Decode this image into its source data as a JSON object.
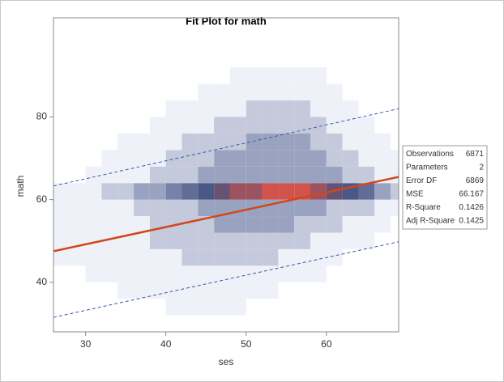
{
  "chart_data": {
    "type": "heatmap-fit",
    "title": "Fit Plot for math",
    "xlabel": "ses",
    "ylabel": "math",
    "xlim": [
      26,
      69
    ],
    "ylim": [
      28,
      104
    ],
    "xticks": [
      30,
      40,
      50,
      60
    ],
    "yticks": [
      40,
      60,
      80
    ],
    "xbins": [
      26,
      28,
      30,
      32,
      34,
      36,
      38,
      40,
      42,
      44,
      46,
      48,
      50,
      52,
      54,
      56,
      58,
      60,
      62,
      64,
      66,
      68,
      70
    ],
    "ybins": [
      32,
      36,
      40,
      44,
      48,
      52,
      56,
      60,
      64,
      68,
      72,
      76,
      80,
      84,
      88,
      92
    ],
    "counts": [
      [
        0,
        0,
        0,
        0,
        0,
        0,
        0,
        1,
        1,
        1,
        1,
        1,
        0,
        0,
        0,
        0,
        0,
        0,
        0,
        0,
        0,
        0
      ],
      [
        0,
        0,
        0,
        0,
        1,
        1,
        1,
        1,
        1,
        1,
        1,
        1,
        1,
        1,
        0,
        0,
        0,
        0,
        0,
        0,
        0,
        0
      ],
      [
        0,
        0,
        1,
        1,
        1,
        1,
        1,
        1,
        1,
        1,
        1,
        1,
        1,
        1,
        1,
        1,
        1,
        0,
        0,
        0,
        0,
        0
      ],
      [
        1,
        1,
        1,
        1,
        1,
        1,
        1,
        1,
        2,
        2,
        2,
        2,
        2,
        2,
        1,
        1,
        1,
        1,
        0,
        0,
        0,
        0
      ],
      [
        1,
        1,
        1,
        1,
        1,
        1,
        2,
        2,
        2,
        2,
        2,
        2,
        2,
        2,
        2,
        2,
        1,
        1,
        1,
        1,
        0,
        0
      ],
      [
        1,
        1,
        1,
        1,
        1,
        1,
        2,
        2,
        2,
        2,
        3,
        3,
        3,
        3,
        3,
        2,
        2,
        2,
        1,
        1,
        1,
        0
      ],
      [
        1,
        1,
        1,
        1,
        1,
        2,
        2,
        2,
        2,
        3,
        3,
        3,
        3,
        3,
        3,
        3,
        3,
        2,
        2,
        2,
        1,
        1
      ],
      [
        1,
        1,
        1,
        2,
        2,
        3,
        3,
        4,
        5,
        6,
        7,
        8,
        8,
        9,
        9,
        9,
        8,
        7,
        6,
        5,
        3,
        2
      ],
      [
        0,
        0,
        1,
        1,
        1,
        1,
        2,
        2,
        2,
        3,
        3,
        3,
        3,
        3,
        3,
        3,
        3,
        3,
        2,
        2,
        1,
        1
      ],
      [
        0,
        0,
        0,
        1,
        1,
        1,
        1,
        2,
        2,
        2,
        3,
        3,
        3,
        3,
        3,
        3,
        3,
        2,
        2,
        1,
        1,
        1
      ],
      [
        0,
        0,
        0,
        0,
        1,
        1,
        1,
        1,
        2,
        2,
        2,
        2,
        3,
        3,
        3,
        3,
        2,
        2,
        1,
        1,
        1,
        0
      ],
      [
        0,
        0,
        0,
        0,
        0,
        0,
        1,
        1,
        1,
        1,
        2,
        2,
        2,
        2,
        2,
        2,
        2,
        1,
        1,
        1,
        0,
        0
      ],
      [
        0,
        0,
        0,
        0,
        0,
        0,
        0,
        1,
        1,
        1,
        1,
        1,
        2,
        2,
        2,
        2,
        1,
        1,
        1,
        0,
        0,
        0
      ],
      [
        0,
        0,
        0,
        0,
        0,
        0,
        0,
        0,
        0,
        1,
        1,
        1,
        1,
        1,
        1,
        1,
        1,
        1,
        0,
        0,
        0,
        0
      ],
      [
        0,
        0,
        0,
        0,
        0,
        0,
        0,
        0,
        0,
        0,
        0,
        1,
        1,
        1,
        1,
        1,
        1,
        0,
        0,
        0,
        0,
        0
      ]
    ],
    "color_ramp": [
      "#eef1f8",
      "#7d89ad",
      "#44517f",
      "#d0534c"
    ],
    "x": [
      26,
      69
    ],
    "fit": {
      "color": "#d4461b",
      "values": [
        47.5,
        65.5
      ]
    },
    "upper_limit": {
      "color": "#3c5aa8",
      "values": [
        63.3,
        82
      ]
    },
    "lower_limit": {
      "color": "#3c5aa8",
      "values": [
        31.5,
        49.8
      ]
    },
    "stats": [
      [
        "Observations",
        "6871"
      ],
      [
        "Parameters",
        "2"
      ],
      [
        "Error DF",
        "6869"
      ],
      [
        "MSE",
        "66.167"
      ],
      [
        "R-Square",
        "0.1426"
      ],
      [
        "Adj R-Square",
        "0.1425"
      ]
    ]
  }
}
